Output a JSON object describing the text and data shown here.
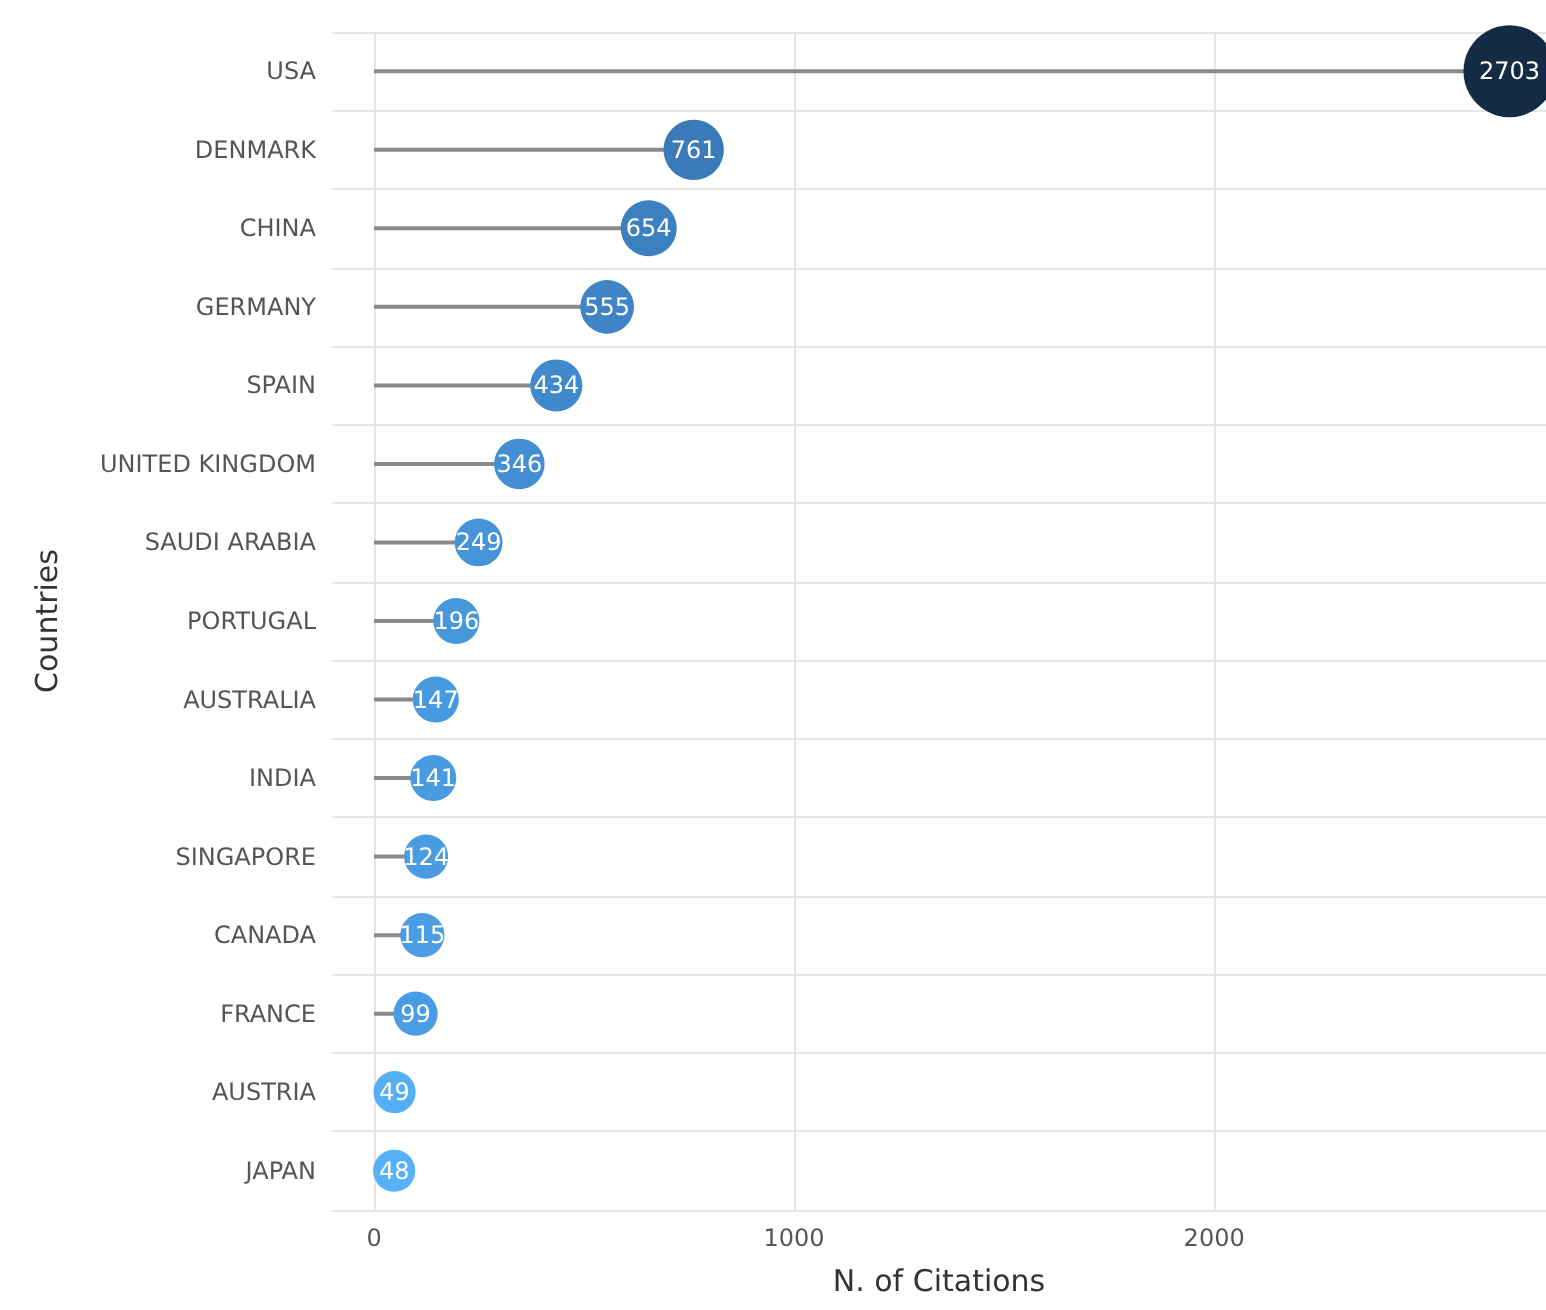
{
  "chart_data": {
    "type": "lollipop",
    "orientation": "horizontal",
    "xlabel": "N. of Citations",
    "ylabel": "Countries",
    "categories": [
      "USA",
      "DENMARK",
      "CHINA",
      "GERMANY",
      "SPAIN",
      "UNITED KINGDOM",
      "SAUDI ARABIA",
      "PORTUGAL",
      "AUSTRALIA",
      "INDIA",
      "SINGAPORE",
      "CANADA",
      "FRANCE",
      "AUSTRIA",
      "JAPAN"
    ],
    "values": [
      2703,
      761,
      654,
      555,
      434,
      346,
      249,
      196,
      147,
      141,
      124,
      115,
      99,
      49,
      48
    ],
    "colors": [
      "#132b43",
      "#3a7ab8",
      "#3d80c0",
      "#3f84c6",
      "#4189cd",
      "#438ed2",
      "#4593d8",
      "#4797dd",
      "#489ae0",
      "#499be1",
      "#499be2",
      "#4a9ce3",
      "#4a9de4",
      "#55aff5",
      "#56b1f7"
    ],
    "sizes": [
      1,
      0.43,
      0.37,
      0.34,
      0.32,
      0.3,
      0.27,
      0.25,
      0.25,
      0.25,
      0.23,
      0.23,
      0.23,
      0.21,
      0.21
    ],
    "xlim": [
      -100,
      2790
    ],
    "xticks": [
      0,
      1000,
      2000
    ],
    "grid": true,
    "data_labels": true
  }
}
